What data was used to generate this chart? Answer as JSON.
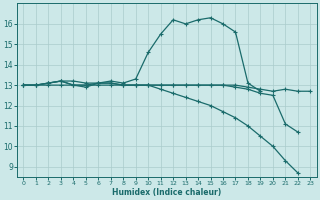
{
  "xlabel": "Humidex (Indice chaleur)",
  "bg_color": "#cce8e8",
  "grid_color": "#aacccc",
  "line_color": "#1a6b6b",
  "xlim": [
    -0.5,
    23.5
  ],
  "ylim": [
    8.5,
    17.0
  ],
  "xticks": [
    0,
    1,
    2,
    3,
    4,
    5,
    6,
    7,
    8,
    9,
    10,
    11,
    12,
    13,
    14,
    15,
    16,
    17,
    18,
    19,
    20,
    21,
    22,
    23
  ],
  "yticks": [
    9,
    10,
    11,
    12,
    13,
    14,
    15,
    16
  ],
  "series": [
    {
      "x": [
        0,
        1,
        2,
        3,
        4,
        5,
        6,
        7,
        8,
        9,
        10,
        11,
        12,
        13,
        14,
        15,
        16,
        17,
        18,
        19,
        20,
        21,
        22
      ],
      "y": [
        13.0,
        13.0,
        13.0,
        13.0,
        13.0,
        13.0,
        13.0,
        13.0,
        13.0,
        13.0,
        13.0,
        12.8,
        12.6,
        12.4,
        12.2,
        12.0,
        11.7,
        11.4,
        11.0,
        10.5,
        10.0,
        9.3,
        8.7
      ]
    },
    {
      "x": [
        0,
        1,
        2,
        3,
        4,
        5,
        6,
        7,
        8,
        9,
        10,
        11,
        12,
        13,
        14,
        15,
        16,
        17,
        18,
        19
      ],
      "y": [
        13.0,
        13.0,
        13.1,
        13.2,
        13.2,
        13.1,
        13.1,
        13.2,
        13.1,
        13.3,
        14.6,
        15.5,
        16.2,
        16.0,
        16.2,
        16.3,
        16.0,
        15.6,
        13.1,
        12.7
      ]
    },
    {
      "x": [
        0,
        1,
        2,
        3,
        4,
        5,
        6,
        7,
        8,
        9,
        10,
        11,
        12,
        13,
        14,
        15,
        16,
        17,
        18,
        19,
        20,
        21,
        22,
        23
      ],
      "y": [
        13.0,
        13.0,
        13.1,
        13.2,
        13.0,
        13.0,
        13.1,
        13.1,
        13.0,
        13.0,
        13.0,
        13.0,
        13.0,
        13.0,
        13.0,
        13.0,
        13.0,
        13.0,
        12.9,
        12.8,
        12.7,
        12.8,
        12.7,
        12.7
      ]
    },
    {
      "x": [
        0,
        1,
        2,
        3,
        4,
        5,
        6,
        7,
        8,
        9,
        10,
        11,
        12,
        13,
        14,
        15,
        16,
        17,
        18,
        19,
        20,
        21,
        22
      ],
      "y": [
        13.0,
        13.0,
        13.1,
        13.2,
        13.0,
        12.9,
        13.1,
        13.1,
        13.0,
        13.0,
        13.0,
        13.0,
        13.0,
        13.0,
        13.0,
        13.0,
        13.0,
        12.9,
        12.8,
        12.6,
        12.5,
        11.1,
        10.7
      ]
    }
  ]
}
